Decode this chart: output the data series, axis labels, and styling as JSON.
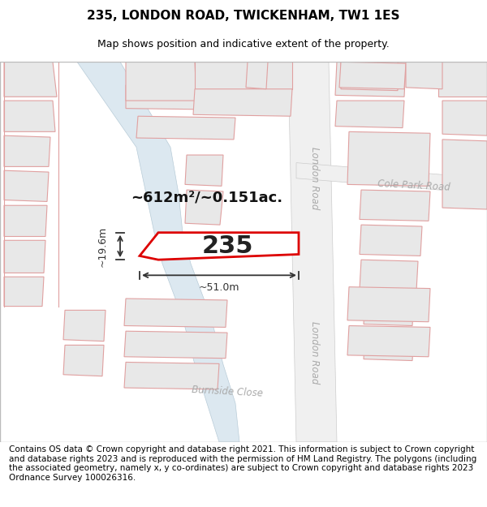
{
  "title": "235, LONDON ROAD, TWICKENHAM, TW1 1ES",
  "subtitle": "Map shows position and indicative extent of the property.",
  "footer": "Contains OS data © Crown copyright and database right 2021. This information is subject to Crown copyright and database rights 2023 and is reproduced with the permission of HM Land Registry. The polygons (including the associated geometry, namely x, y co-ordinates) are subject to Crown copyright and database rights 2023 Ordnance Survey 100026316.",
  "title_fontsize": 11,
  "subtitle_fontsize": 9,
  "footer_fontsize": 7.5,
  "map_bg": "#ffffff",
  "bld_fc": "#e8e8e8",
  "bld_ec": "#e0a0a0",
  "road_outline_color": "#e0a0a0",
  "path_fc": "#dce8f0",
  "path_ec": "#b8ccd8",
  "london_road_fc": "#f0f0f0",
  "london_road_ec": "#cccccc",
  "plot_fc": "#ffffff",
  "plot_ec": "#dd0000",
  "dim_color": "#333333",
  "label_color": "#111111",
  "street_color": "#aaaaaa",
  "area_label": "~612m²/~0.151ac.",
  "dim_width": "~51.0m",
  "dim_height": "~19.6m",
  "label_235": "235"
}
